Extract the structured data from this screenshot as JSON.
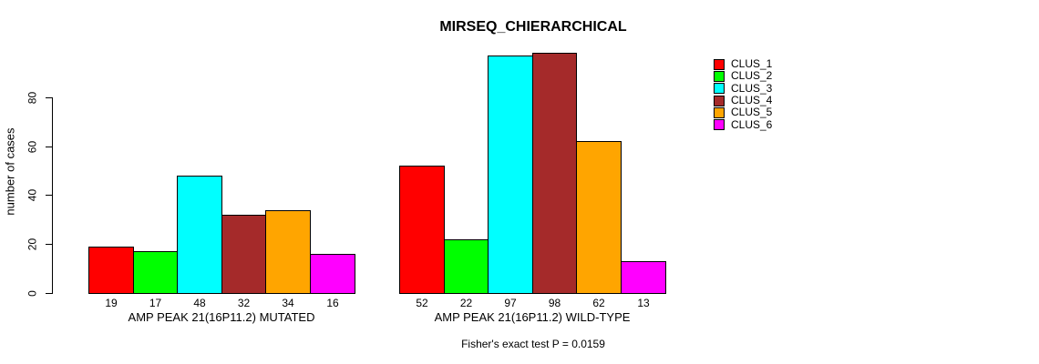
{
  "chart_data": {
    "type": "bar",
    "title": "MIRSEQ_CHIERARCHICAL",
    "ylabel": "number of cases",
    "xlabel": "",
    "ylim": [
      0,
      99
    ],
    "yticks": [
      0,
      20,
      40,
      60,
      80
    ],
    "grid": false,
    "legend_position": "top-right",
    "bar_value_labels_shown": true,
    "categories": [
      "AMP PEAK 21(16P11.2) MUTATED",
      "AMP PEAK 21(16P11.2) WILD-TYPE"
    ],
    "series": [
      {
        "name": "CLUS_1",
        "color": "#FF0000",
        "values": [
          19,
          52
        ]
      },
      {
        "name": "CLUS_2",
        "color": "#00FF00",
        "values": [
          17,
          22
        ]
      },
      {
        "name": "CLUS_3",
        "color": "#00FFFF",
        "values": [
          48,
          97
        ]
      },
      {
        "name": "CLUS_4",
        "color": "#A52A2A",
        "values": [
          32,
          98
        ]
      },
      {
        "name": "CLUS_5",
        "color": "#FFA500",
        "values": [
          34,
          62
        ]
      },
      {
        "name": "CLUS_6",
        "color": "#FF00FF",
        "values": [
          16,
          13
        ]
      }
    ],
    "footnote": "Fisher's exact test P = 0.0159"
  }
}
